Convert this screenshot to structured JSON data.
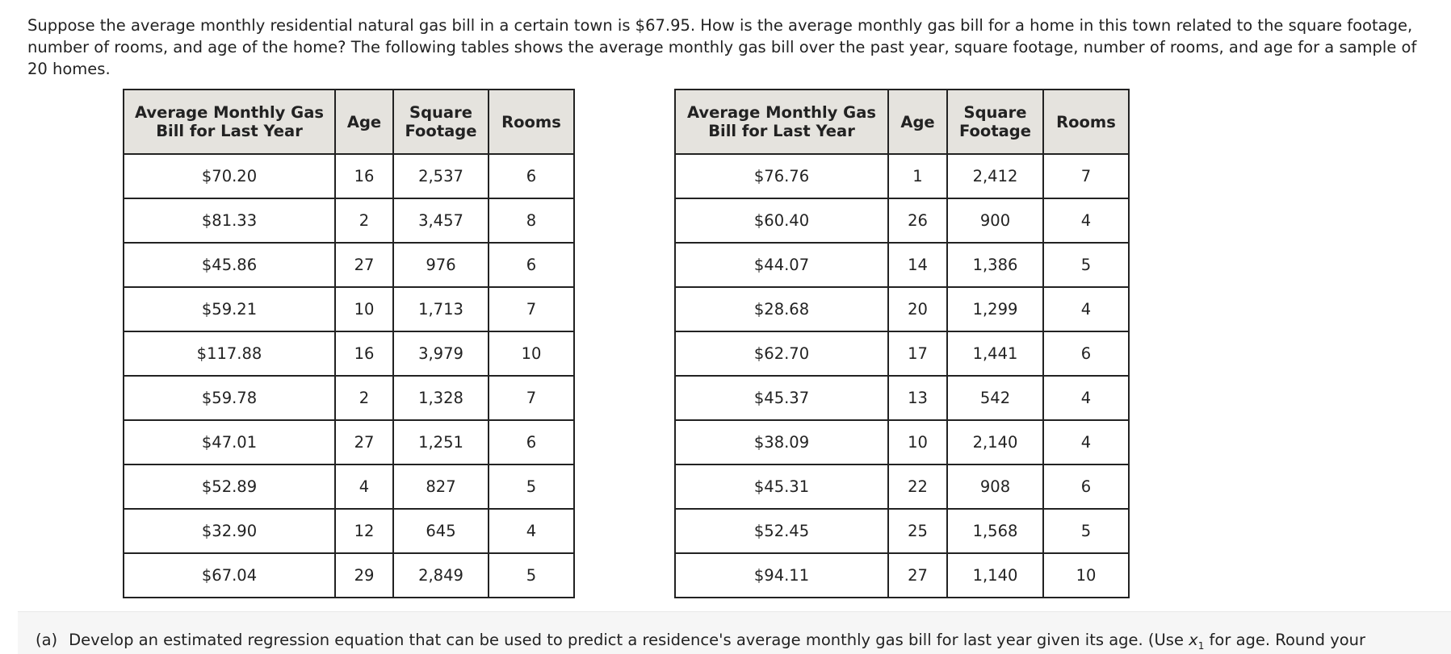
{
  "question": {
    "text": "Suppose the average monthly residential natural gas bill in a certain town is $67.95. How is the average monthly gas bill for a home in this town related to the square footage, number of rooms, and age of the home? The following tables shows the average monthly gas bill over the past year, square footage, number of rooms, and age for a sample of 20 homes."
  },
  "headers": {
    "bill_line1": "Average Monthly Gas",
    "bill_line2": "Bill for Last Year",
    "age": "Age",
    "sq_line1": "Square",
    "sq_line2": "Footage",
    "rooms": "Rooms"
  },
  "table1": [
    {
      "bill": "$70.20",
      "age": "16",
      "sqft": "2,537",
      "rooms": "6"
    },
    {
      "bill": "$81.33",
      "age": "2",
      "sqft": "3,457",
      "rooms": "8"
    },
    {
      "bill": "$45.86",
      "age": "27",
      "sqft": "976",
      "rooms": "6"
    },
    {
      "bill": "$59.21",
      "age": "10",
      "sqft": "1,713",
      "rooms": "7"
    },
    {
      "bill": "$117.88",
      "age": "16",
      "sqft": "3,979",
      "rooms": "10"
    },
    {
      "bill": "$59.78",
      "age": "2",
      "sqft": "1,328",
      "rooms": "7"
    },
    {
      "bill": "$47.01",
      "age": "27",
      "sqft": "1,251",
      "rooms": "6"
    },
    {
      "bill": "$52.89",
      "age": "4",
      "sqft": "827",
      "rooms": "5"
    },
    {
      "bill": "$32.90",
      "age": "12",
      "sqft": "645",
      "rooms": "4"
    },
    {
      "bill": "$67.04",
      "age": "29",
      "sqft": "2,849",
      "rooms": "5"
    }
  ],
  "table2": [
    {
      "bill": "$76.76",
      "age": "1",
      "sqft": "2,412",
      "rooms": "7"
    },
    {
      "bill": "$60.40",
      "age": "26",
      "sqft": "900",
      "rooms": "4"
    },
    {
      "bill": "$44.07",
      "age": "14",
      "sqft": "1,386",
      "rooms": "5"
    },
    {
      "bill": "$28.68",
      "age": "20",
      "sqft": "1,299",
      "rooms": "4"
    },
    {
      "bill": "$62.70",
      "age": "17",
      "sqft": "1,441",
      "rooms": "6"
    },
    {
      "bill": "$45.37",
      "age": "13",
      "sqft": "542",
      "rooms": "4"
    },
    {
      "bill": "$38.09",
      "age": "10",
      "sqft": "2,140",
      "rooms": "4"
    },
    {
      "bill": "$45.31",
      "age": "22",
      "sqft": "908",
      "rooms": "6"
    },
    {
      "bill": "$52.45",
      "age": "25",
      "sqft": "1,568",
      "rooms": "5"
    },
    {
      "bill": "$94.11",
      "age": "27",
      "sqft": "1,140",
      "rooms": "10"
    }
  ],
  "part_a": {
    "label": "(a)",
    "text_before": "Develop an estimated regression equation that can be used to predict a residence's average monthly gas bill for last year given its age. (Use ",
    "var": "x",
    "sub": "1",
    "text_after": " for age. Round your"
  }
}
